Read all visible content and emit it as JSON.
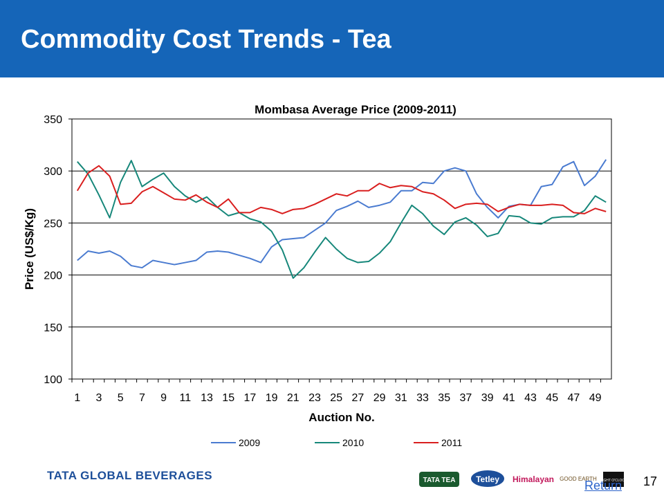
{
  "title": "Commodity Cost Trends - Tea",
  "footer": {
    "company": "TATA GLOBAL BEVERAGES",
    "brands": [
      "TATA TEA",
      "Tetley",
      "Himalayan",
      "GOOD EARTH",
      "EIGHT O'CLOCK"
    ],
    "page_number": "17",
    "link": "Return"
  },
  "chart_data": {
    "type": "line",
    "title": "Mombasa Average Price (2009-2011)",
    "x_label": "Auction No.",
    "y_label": "Price (US$/Kg)",
    "categories": [
      1,
      null,
      3,
      null,
      5,
      null,
      7,
      null,
      9,
      null,
      11,
      null,
      13,
      null,
      15,
      null,
      17,
      null,
      19,
      null,
      21,
      null,
      23,
      null,
      25,
      null,
      27,
      null,
      29,
      null,
      31,
      null,
      33,
      null,
      35,
      null,
      37,
      null,
      39,
      null,
      41,
      null,
      43,
      null,
      45,
      null,
      47,
      null,
      49,
      null
    ],
    "ylim": [
      100,
      350
    ],
    "yticks": [
      100,
      150,
      200,
      250,
      300,
      350
    ],
    "grid": true,
    "legend": "bottom",
    "series": [
      {
        "name": "2009",
        "color": "#4a7bd0",
        "values": [
          214,
          223,
          221,
          223,
          218,
          209,
          207,
          214,
          212,
          210,
          212,
          214,
          222,
          223,
          222,
          219,
          216,
          212,
          227,
          234,
          235,
          236,
          243,
          250,
          262,
          266,
          271,
          265,
          267,
          270,
          281,
          281,
          289,
          288,
          300,
          303,
          300,
          278,
          265,
          255,
          266,
          268,
          267,
          285,
          287,
          304,
          309,
          286,
          295,
          311
        ]
      },
      {
        "name": "2010",
        "color": "#16877a",
        "values": [
          309,
          297,
          277,
          255,
          289,
          310,
          285,
          292,
          298,
          285,
          276,
          270,
          275,
          265,
          257,
          260,
          254,
          251,
          242,
          224,
          197,
          207,
          222,
          236,
          225,
          216,
          212,
          213,
          221,
          232,
          250,
          267,
          259,
          247,
          239,
          251,
          255,
          248,
          237,
          240,
          257,
          256,
          250,
          249,
          255,
          256,
          256,
          262,
          276,
          270
        ]
      },
      {
        "name": "2011",
        "color": "#d91e1e",
        "values": [
          281,
          298,
          305,
          295,
          268,
          269,
          280,
          285,
          279,
          273,
          272,
          277,
          270,
          265,
          273,
          260,
          260,
          265,
          263,
          259,
          263,
          264,
          268,
          273,
          278,
          276,
          281,
          281,
          288,
          284,
          286,
          285,
          280,
          278,
          272,
          264,
          268,
          269,
          268,
          261,
          265,
          268,
          267,
          267,
          268,
          267,
          260,
          259,
          264,
          261
        ]
      }
    ]
  }
}
